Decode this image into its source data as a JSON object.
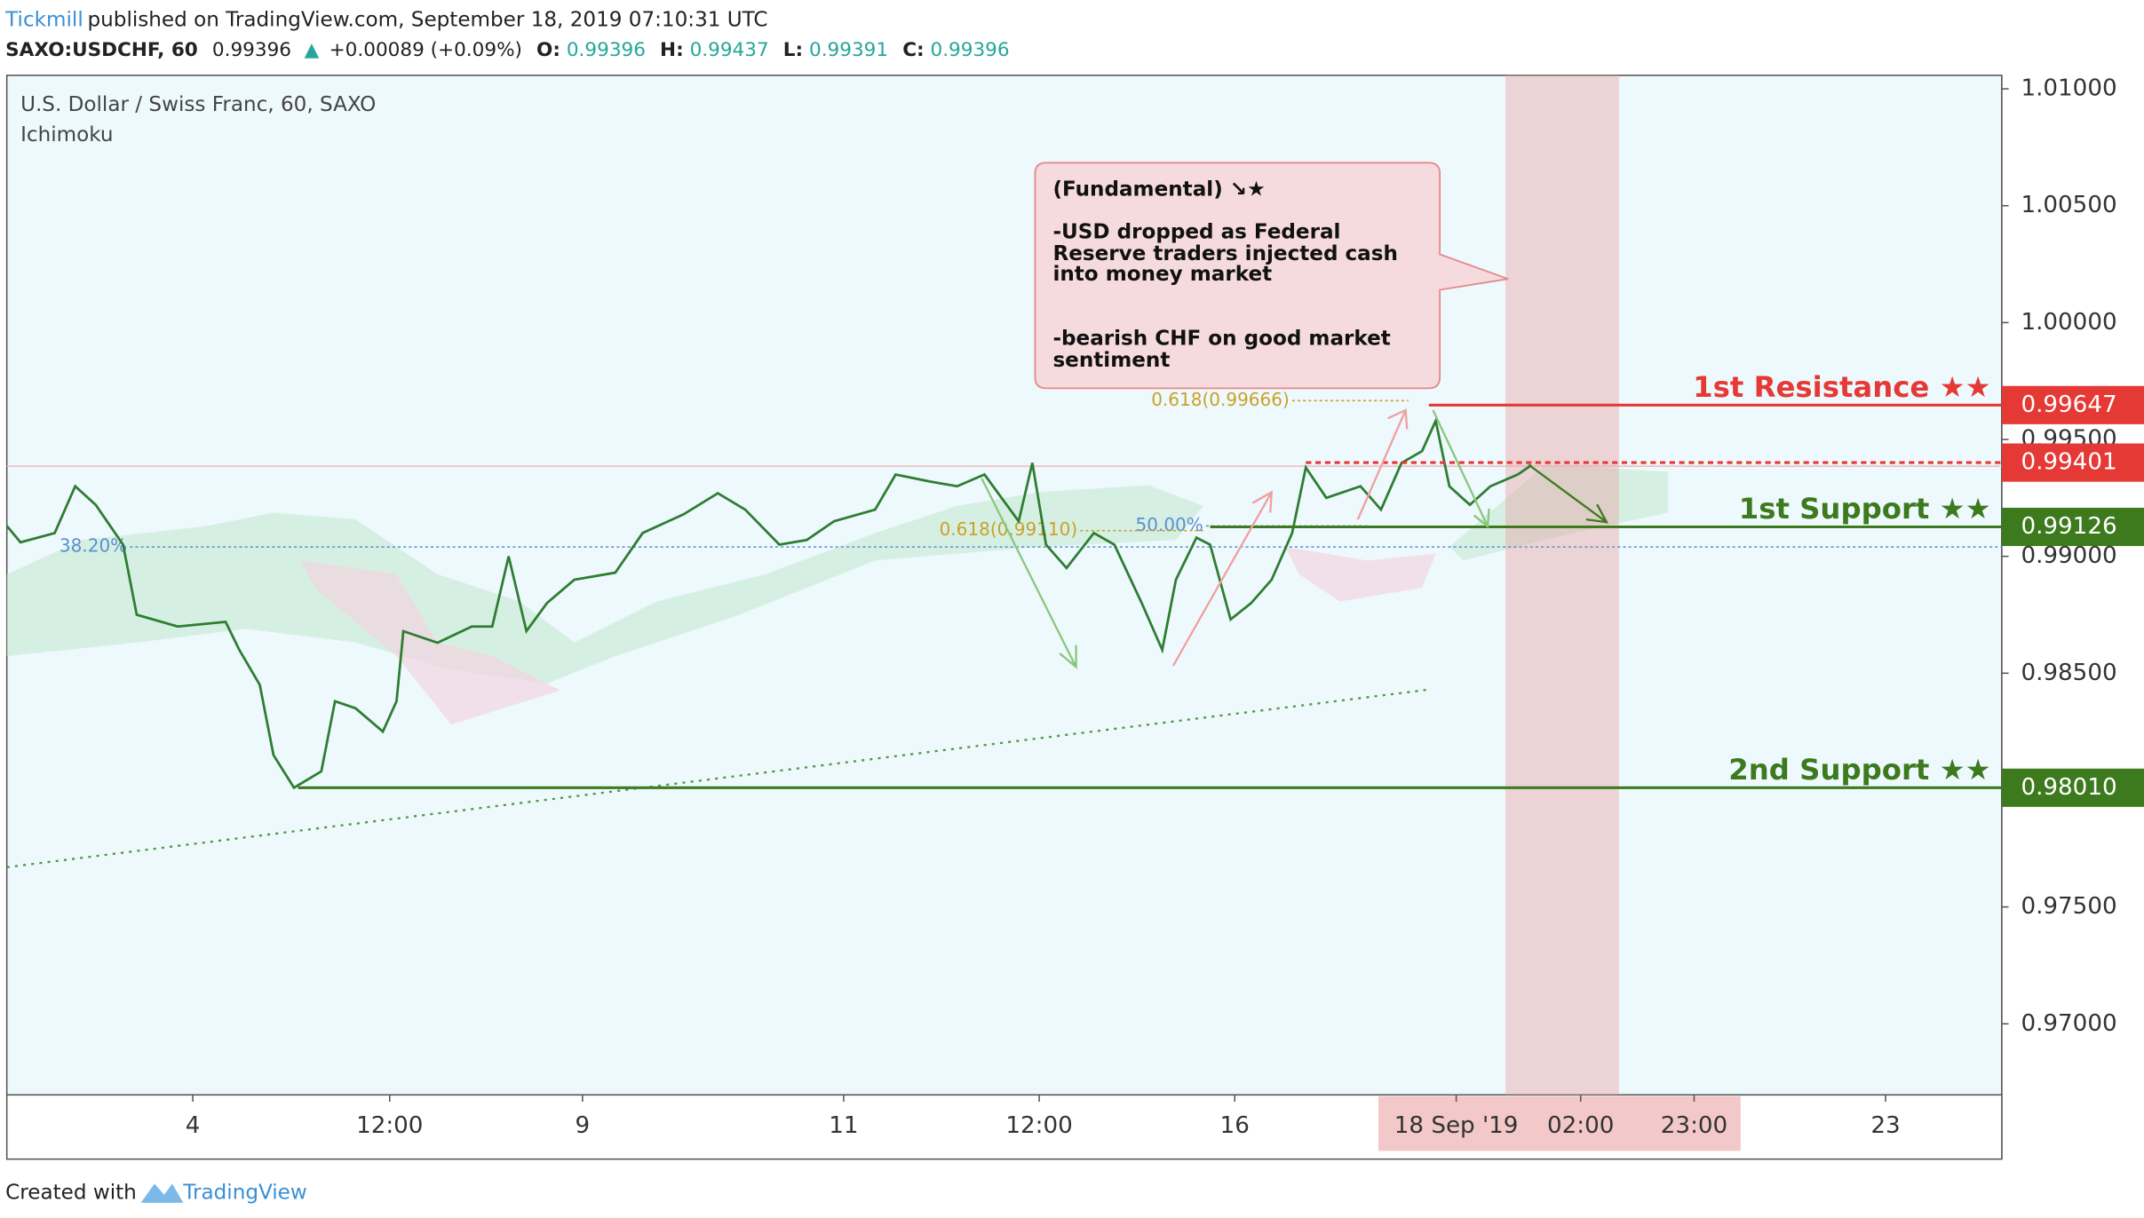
{
  "header": {
    "publisher": "Tickmill",
    "published": "published on TradingView.com, September 18, 2019 07:10:31 UTC",
    "symbol": "SAXO:USDCHF, 60",
    "last": "0.99396",
    "arrow": "▲",
    "change": "+0.00089 (+0.09%)",
    "o_label": "O:",
    "o": "0.99396",
    "h_label": "H:",
    "h": "0.99437",
    "l_label": "L:",
    "l": "0.99391",
    "c_label": "C:",
    "c": "0.99396"
  },
  "chart_data": {
    "type": "line",
    "title": "U.S. Dollar / Swiss Franc, 60, SAXO",
    "indicator": "Ichimoku",
    "color": "#2e7d32",
    "x": [
      5,
      15,
      40,
      55,
      70,
      90,
      100,
      130,
      165,
      175,
      190,
      200,
      215,
      235,
      245,
      260,
      280,
      290,
      295,
      320,
      345,
      360,
      372,
      385,
      400,
      420,
      450,
      470,
      500,
      525,
      545,
      570,
      590,
      610,
      640,
      655,
      680,
      700,
      720,
      745,
      755,
      765,
      780,
      800,
      815,
      835,
      850,
      860,
      875,
      885,
      900,
      915,
      930,
      945,
      955,
      970,
      995,
      1010,
      1025,
      1040,
      1050,
      1060,
      1075,
      1090,
      1110,
      1120
    ],
    "values": [
      0.9913,
      0.9906,
      0.991,
      0.993,
      0.9922,
      0.9905,
      0.9875,
      0.987,
      0.9872,
      0.986,
      0.9845,
      0.9815,
      0.9801,
      0.9808,
      0.9838,
      0.9835,
      0.9825,
      0.9838,
      0.9868,
      0.9863,
      0.987,
      0.987,
      0.99,
      0.9868,
      0.988,
      0.989,
      0.9893,
      0.991,
      0.9918,
      0.9927,
      0.992,
      0.9905,
      0.9907,
      0.9915,
      0.992,
      0.9935,
      0.9932,
      0.993,
      0.9935,
      0.9915,
      0.994,
      0.9905,
      0.9895,
      0.991,
      0.9905,
      0.988,
      0.986,
      0.989,
      0.9908,
      0.9905,
      0.9873,
      0.988,
      0.989,
      0.991,
      0.9938,
      0.9925,
      0.993,
      0.992,
      0.994,
      0.9945,
      0.9958,
      0.993,
      0.9922,
      0.993,
      0.9935,
      0.9939
    ],
    "xlim": [
      5,
      1464
    ],
    "ylim": [
      0.96696,
      1.01058
    ],
    "xticks": [
      {
        "value": 141,
        "label": "4"
      },
      {
        "value": 285,
        "label": "12:00"
      },
      {
        "value": 426,
        "label": "9"
      },
      {
        "value": 617,
        "label": "11"
      },
      {
        "value": 760,
        "label": "12:00"
      },
      {
        "value": 903,
        "label": "16"
      },
      {
        "value": 1065,
        "label": "18 Sep '19"
      },
      {
        "value": 1156,
        "label": "02:00"
      },
      {
        "value": 1239,
        "label": "23:00"
      },
      {
        "value": 1379,
        "label": "23"
      }
    ],
    "yticks": [
      {
        "value": 1.01,
        "label": "1.01000"
      },
      {
        "value": 1.005,
        "label": "1.00500"
      },
      {
        "value": 1.0,
        "label": "1.00000"
      },
      {
        "value": 0.995,
        "label": "0.99500"
      },
      {
        "value": 0.99,
        "label": "0.99000"
      },
      {
        "value": 0.985,
        "label": "0.98500"
      },
      {
        "value": 0.975,
        "label": "0.97500"
      },
      {
        "value": 0.97,
        "label": "0.97000"
      }
    ],
    "highlight": [
      1101,
      1184
    ],
    "levels": [
      {
        "label": "1st Resistance ★★",
        "value": 0.99647,
        "color": "#e53935",
        "from": 1045,
        "dash": false
      },
      {
        "value": 0.99401,
        "color": "#e53935",
        "from": 955,
        "dash": true
      },
      {
        "label": "1st Support ★★",
        "value": 0.99126,
        "color": "#3d7a1e",
        "from": 885,
        "dash": false
      },
      {
        "label": "2nd Support ★★",
        "value": 0.9801,
        "value_label": "0.98010",
        "color": "#3d7a1e",
        "from": 218,
        "dash": false
      }
    ],
    "fibs": [
      {
        "label": "0.618(0.99666)",
        "value": 0.99666,
        "color": "#c9a227",
        "from": 945,
        "to": 1030
      },
      {
        "label": "38.20%",
        "value": 0.9904,
        "color": "#5b8fd1",
        "from": 95,
        "to": 1464
      },
      {
        "label": "50.00%",
        "value": 0.9913,
        "color": "#5b8fd1",
        "from": 882,
        "to": 1000
      },
      {
        "label": "0.618(0.99110)",
        "value": 0.9911,
        "color": "#c9a227",
        "from": 790,
        "to": 880
      }
    ],
    "trendline": {
      "x": [
        5,
        1045
      ],
      "y": [
        0.9767,
        0.9843
      ]
    }
  },
  "annotation": {
    "lines": [
      "(Fundamental) ↘★",
      "-USD dropped as Federal",
      "Reserve traders injected cash",
      "into money market",
      "-bearish CHF on good market",
      "sentiment"
    ]
  },
  "footer": {
    "created": "Created with",
    "brand": "TradingView"
  }
}
